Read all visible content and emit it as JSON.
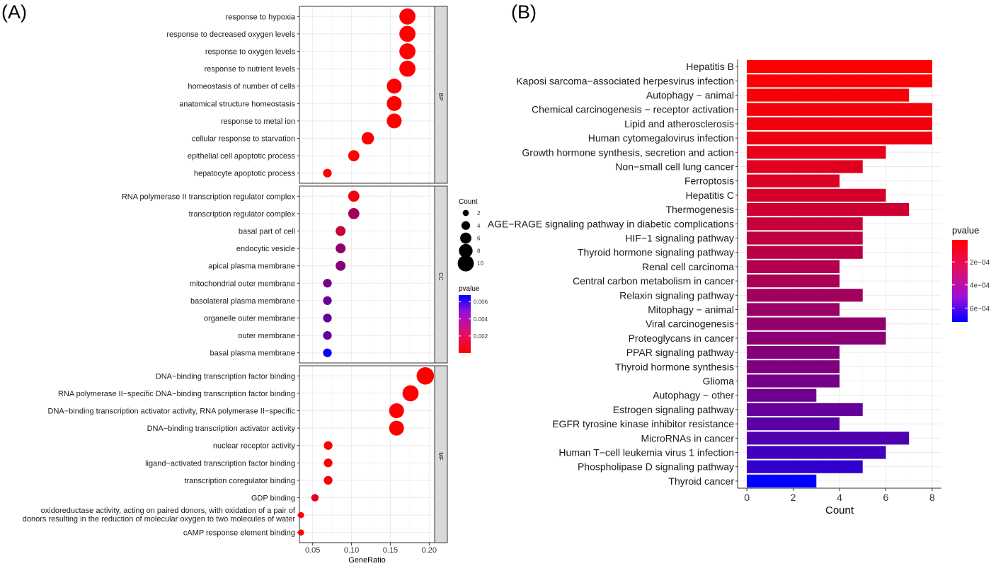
{
  "panel_a_label": "(A)",
  "panel_b_label": "(B)",
  "chart_data": [
    {
      "type": "scatter",
      "xlabel": "GeneRatio",
      "xlim": [
        0.033,
        0.207
      ],
      "xticks": [
        0.05,
        0.1,
        0.15,
        0.2
      ],
      "xtick_labels": [
        "0.05",
        "0.10",
        "0.15",
        "0.20"
      ],
      "size_legend": {
        "title": "Count",
        "values": [
          2,
          4,
          6,
          8,
          10
        ],
        "labels": [
          "2",
          "4",
          "6",
          "8",
          "10"
        ]
      },
      "color_legend": {
        "title": "pvalue",
        "range": [
          0,
          0.0068
        ],
        "ticks": [
          0.002,
          0.004,
          0.006
        ],
        "tick_labels": [
          "0.002",
          "0.004",
          "0.006"
        ],
        "low_color": "#ff0000",
        "high_color": "#0000ff"
      },
      "facets": [
        {
          "name": "BP",
          "terms": [
            {
              "label": "response to hypoxia",
              "gene_ratio": 0.172,
              "count": 10,
              "pvalue": 1e-05
            },
            {
              "label": "response to decreased oxygen levels",
              "gene_ratio": 0.172,
              "count": 10,
              "pvalue": 1e-05
            },
            {
              "label": "response to oxygen levels",
              "gene_ratio": 0.172,
              "count": 10,
              "pvalue": 1e-05
            },
            {
              "label": "response to nutrient levels",
              "gene_ratio": 0.172,
              "count": 10,
              "pvalue": 2e-05
            },
            {
              "label": "homeostasis of number of cells",
              "gene_ratio": 0.155,
              "count": 9,
              "pvalue": 2e-05
            },
            {
              "label": "anatomical structure homeostasis",
              "gene_ratio": 0.155,
              "count": 9,
              "pvalue": 3e-05
            },
            {
              "label": "response to metal ion",
              "gene_ratio": 0.155,
              "count": 9,
              "pvalue": 3e-05
            },
            {
              "label": "cellular response to starvation",
              "gene_ratio": 0.121,
              "count": 7,
              "pvalue": 4e-05
            },
            {
              "label": "epithelial cell apoptotic process",
              "gene_ratio": 0.103,
              "count": 6,
              "pvalue": 5e-05
            },
            {
              "label": "hepatocyte apoptotic process",
              "gene_ratio": 0.069,
              "count": 4,
              "pvalue": 6e-05
            }
          ]
        },
        {
          "name": "CC",
          "terms": [
            {
              "label": "RNA polymerase II transcription regulator complex",
              "gene_ratio": 0.103,
              "count": 6,
              "pvalue": 0.0004
            },
            {
              "label": "transcription regulator complex",
              "gene_ratio": 0.103,
              "count": 6,
              "pvalue": 0.0024
            },
            {
              "label": "basal part of cell",
              "gene_ratio": 0.086,
              "count": 5,
              "pvalue": 0.0015
            },
            {
              "label": "endocytic vesicle",
              "gene_ratio": 0.086,
              "count": 5,
              "pvalue": 0.0029
            },
            {
              "label": "apical plasma membrane",
              "gene_ratio": 0.086,
              "count": 5,
              "pvalue": 0.0032
            },
            {
              "label": "mitochondrial outer membrane",
              "gene_ratio": 0.069,
              "count": 4,
              "pvalue": 0.0036
            },
            {
              "label": "basolateral plasma membrane",
              "gene_ratio": 0.069,
              "count": 4,
              "pvalue": 0.0039
            },
            {
              "label": "organelle outer membrane",
              "gene_ratio": 0.069,
              "count": 4,
              "pvalue": 0.0041
            },
            {
              "label": "outer membrane",
              "gene_ratio": 0.069,
              "count": 4,
              "pvalue": 0.0042
            },
            {
              "label": "basal plasma membrane",
              "gene_ratio": 0.069,
              "count": 4,
              "pvalue": 0.0067
            }
          ]
        },
        {
          "name": "MF",
          "terms": [
            {
              "label": "DNA−binding transcription factor binding",
              "gene_ratio": 0.195,
              "count": 11,
              "pvalue": 1e-05
            },
            {
              "label": "RNA polymerase II−specific DNA−binding transcription factor binding",
              "gene_ratio": 0.176,
              "count": 10,
              "pvalue": 2e-05
            },
            {
              "label": "DNA−binding transcription activator activity, RNA polymerase II−specific",
              "gene_ratio": 0.158,
              "count": 9,
              "pvalue": 3e-05
            },
            {
              "label": "DNA−binding transcription activator activity",
              "gene_ratio": 0.158,
              "count": 9,
              "pvalue": 3e-05
            },
            {
              "label": "nuclear receptor activity",
              "gene_ratio": 0.07,
              "count": 4,
              "pvalue": 0.0001
            },
            {
              "label": "ligand−activated transcription factor binding",
              "gene_ratio": 0.07,
              "count": 4,
              "pvalue": 0.0001
            },
            {
              "label": "transcription coregulator binding",
              "gene_ratio": 0.07,
              "count": 4,
              "pvalue": 0.0002
            },
            {
              "label": "GDP binding",
              "gene_ratio": 0.053,
              "count": 3,
              "pvalue": 0.0008
            },
            {
              "label": "oxidoreductase activity, acting on paired donors, with oxidation of a pair of donors resulting in the reduction of molecular oxygen to two molecules of water",
              "label_lines": [
                "oxidoreductase activity, acting on paired donors, with oxidation of a pair of",
                "donors resulting in the reduction of molecular oxygen to two molecules of water"
              ],
              "gene_ratio": 0.035,
              "count": 2,
              "pvalue": 0.0001
            },
            {
              "label": "cAMP response element binding",
              "gene_ratio": 0.035,
              "count": 2,
              "pvalue": 0.0001
            }
          ]
        }
      ]
    },
    {
      "type": "bar",
      "orientation": "horizontal",
      "xlabel": "Count",
      "xlim": [
        -0.4,
        8.4
      ],
      "xticks": [
        0,
        2,
        4,
        6,
        8
      ],
      "xtick_labels": [
        "0",
        "2",
        "4",
        "6",
        "8"
      ],
      "color_legend": {
        "title": "pvalue",
        "range": [
          1e-05,
          0.00072
        ],
        "ticks": [
          0.0002,
          0.0004,
          0.0006
        ],
        "tick_labels": [
          "2e−04",
          "4e−04",
          "6e−04"
        ],
        "low_color": "#ff0000",
        "high_color": "#0000ff"
      },
      "categories": [
        "Hepatitis B",
        "Kaposi sarcoma−associated herpesvirus infection",
        "Autophagy − animal",
        "Chemical carcinogenesis − receptor activation",
        "Lipid and atherosclerosis",
        "Human cytomegalovirus infection",
        "Growth hormone synthesis, secretion and action",
        "Non−small cell lung cancer",
        "Ferroptosis",
        "Hepatitis C",
        "Thermogenesis",
        "AGE−RAGE signaling pathway in diabetic complications",
        "HIF−1 signaling pathway",
        "Thyroid hormone signaling pathway",
        "Renal cell carcinoma",
        "Central carbon metabolism in cancer",
        "Relaxin signaling pathway",
        "Mitophagy − animal",
        "Viral carcinogenesis",
        "Proteoglycans in cancer",
        "PPAR signaling pathway",
        "Thyroid hormone synthesis",
        "Glioma",
        "Autophagy − other",
        "Estrogen signaling pathway",
        "EGFR tyrosine kinase inhibitor resistance",
        "MicroRNAs in cancer",
        "Human T−cell leukemia virus 1 infection",
        "Phospholipase D signaling pathway",
        "Thyroid cancer"
      ],
      "values": [
        8,
        8,
        7,
        8,
        8,
        8,
        6,
        5,
        4,
        6,
        7,
        5,
        5,
        5,
        4,
        4,
        5,
        4,
        6,
        6,
        4,
        4,
        4,
        3,
        5,
        4,
        7,
        6,
        5,
        3
      ],
      "pvalues": [
        1e-05,
        2e-05,
        3e-05,
        4e-05,
        5e-05,
        6e-05,
        8e-05,
        0.0001,
        0.00011,
        0.00013,
        0.00015,
        0.00017,
        0.00019,
        0.00021,
        0.00023,
        0.00025,
        0.00027,
        0.00029,
        0.00031,
        0.00033,
        0.00035,
        0.00037,
        0.00039,
        0.00041,
        0.00044,
        0.00047,
        0.0005,
        0.00054,
        0.00058,
        0.00072
      ]
    }
  ]
}
